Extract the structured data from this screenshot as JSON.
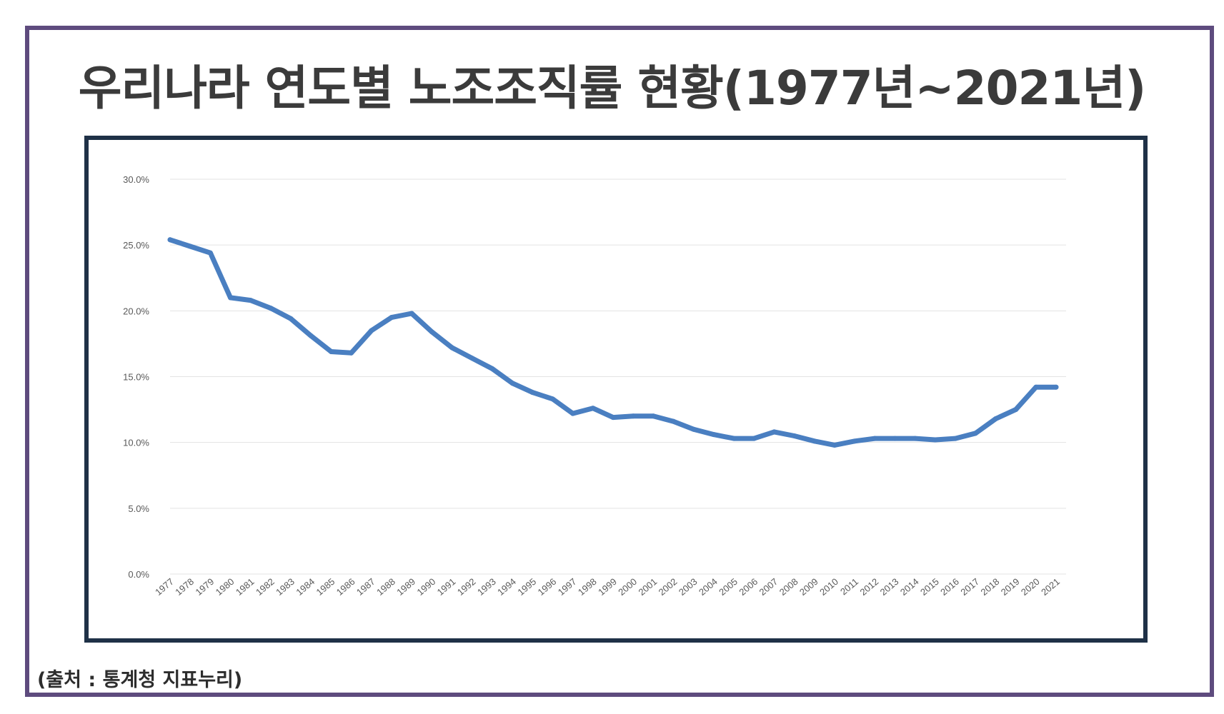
{
  "title": "우리나라 연도별 노조조직률 현황(1977년~2021년)",
  "source": "(출처 : 통계청 지표누리)",
  "colors": {
    "frame": "#5e4b7e",
    "chart_border": "#1f3147",
    "line": "#4a7fc1",
    "grid": "#e3e3e3"
  },
  "chart_data": {
    "type": "line",
    "title": "",
    "xlabel": "",
    "ylabel": "",
    "ylim": [
      0,
      30
    ],
    "yticks": [
      "0.0%",
      "5.0%",
      "10.0%",
      "15.0%",
      "20.0%",
      "25.0%",
      "30.0%"
    ],
    "grid": true,
    "legend": "none",
    "categories": [
      "1977",
      "1978",
      "1979",
      "1980",
      "1981",
      "1982",
      "1983",
      "1984",
      "1985",
      "1986",
      "1987",
      "1988",
      "1989",
      "1990",
      "1991",
      "1992",
      "1993",
      "1994",
      "1995",
      "1996",
      "1997",
      "1998",
      "1999",
      "2000",
      "2001",
      "2002",
      "2003",
      "2004",
      "2005",
      "2006",
      "2007",
      "2008",
      "2009",
      "2010",
      "2011",
      "2012",
      "2013",
      "2014",
      "2015",
      "2016",
      "2017",
      "2018",
      "2019",
      "2020",
      "2021"
    ],
    "series": [
      {
        "values": [
          25.4,
          24.9,
          24.4,
          21.0,
          20.8,
          20.2,
          19.4,
          18.1,
          16.9,
          16.8,
          18.5,
          19.5,
          19.8,
          18.4,
          17.2,
          16.4,
          15.6,
          14.5,
          13.8,
          13.3,
          12.2,
          12.6,
          11.9,
          12.0,
          12.0,
          11.6,
          11.0,
          10.6,
          10.3,
          10.3,
          10.8,
          10.5,
          10.1,
          9.8,
          10.1,
          10.3,
          10.3,
          10.3,
          10.2,
          10.3,
          10.7,
          11.8,
          12.5,
          14.2,
          14.2
        ]
      }
    ]
  }
}
